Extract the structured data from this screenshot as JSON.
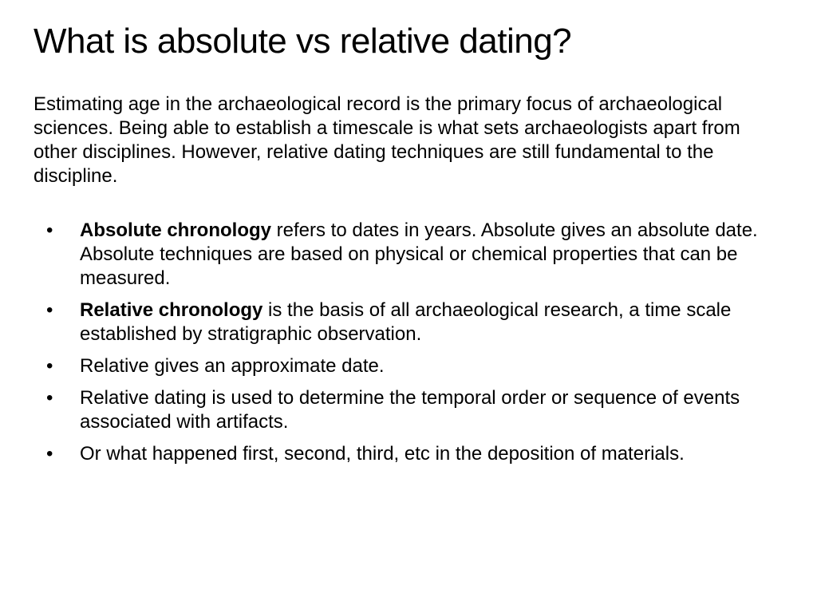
{
  "title": "What is absolute vs relative dating?",
  "intro": "Estimating age in the archaeological record is the primary focus of archaeological sciences.  Being able to establish a timescale is what sets archaeologists apart from other disciplines. However, relative dating techniques are still fundamental to the discipline.",
  "bullets": [
    {
      "bold": "Absolute chronology",
      "rest": " refers to dates in years. Absolute gives an absolute date. Absolute techniques are based on physical or chemical properties that can be measured."
    },
    {
      "bold": "Relative chronology",
      "rest": " is the basis of all archaeological research, a time scale established by stratigraphic observation."
    },
    {
      "bold": "",
      "rest": "Relative gives an approximate date."
    },
    {
      "bold": "",
      "rest": "Relative dating is used to determine the temporal order or sequence of events associated with artifacts."
    },
    {
      "bold": "",
      "rest": "Or what happened first, second, third, etc in the deposition of materials."
    }
  ],
  "style": {
    "background_color": "#ffffff",
    "text_color": "#000000",
    "title_fontsize": 44,
    "body_fontsize": 24,
    "font_family": "Arial"
  }
}
